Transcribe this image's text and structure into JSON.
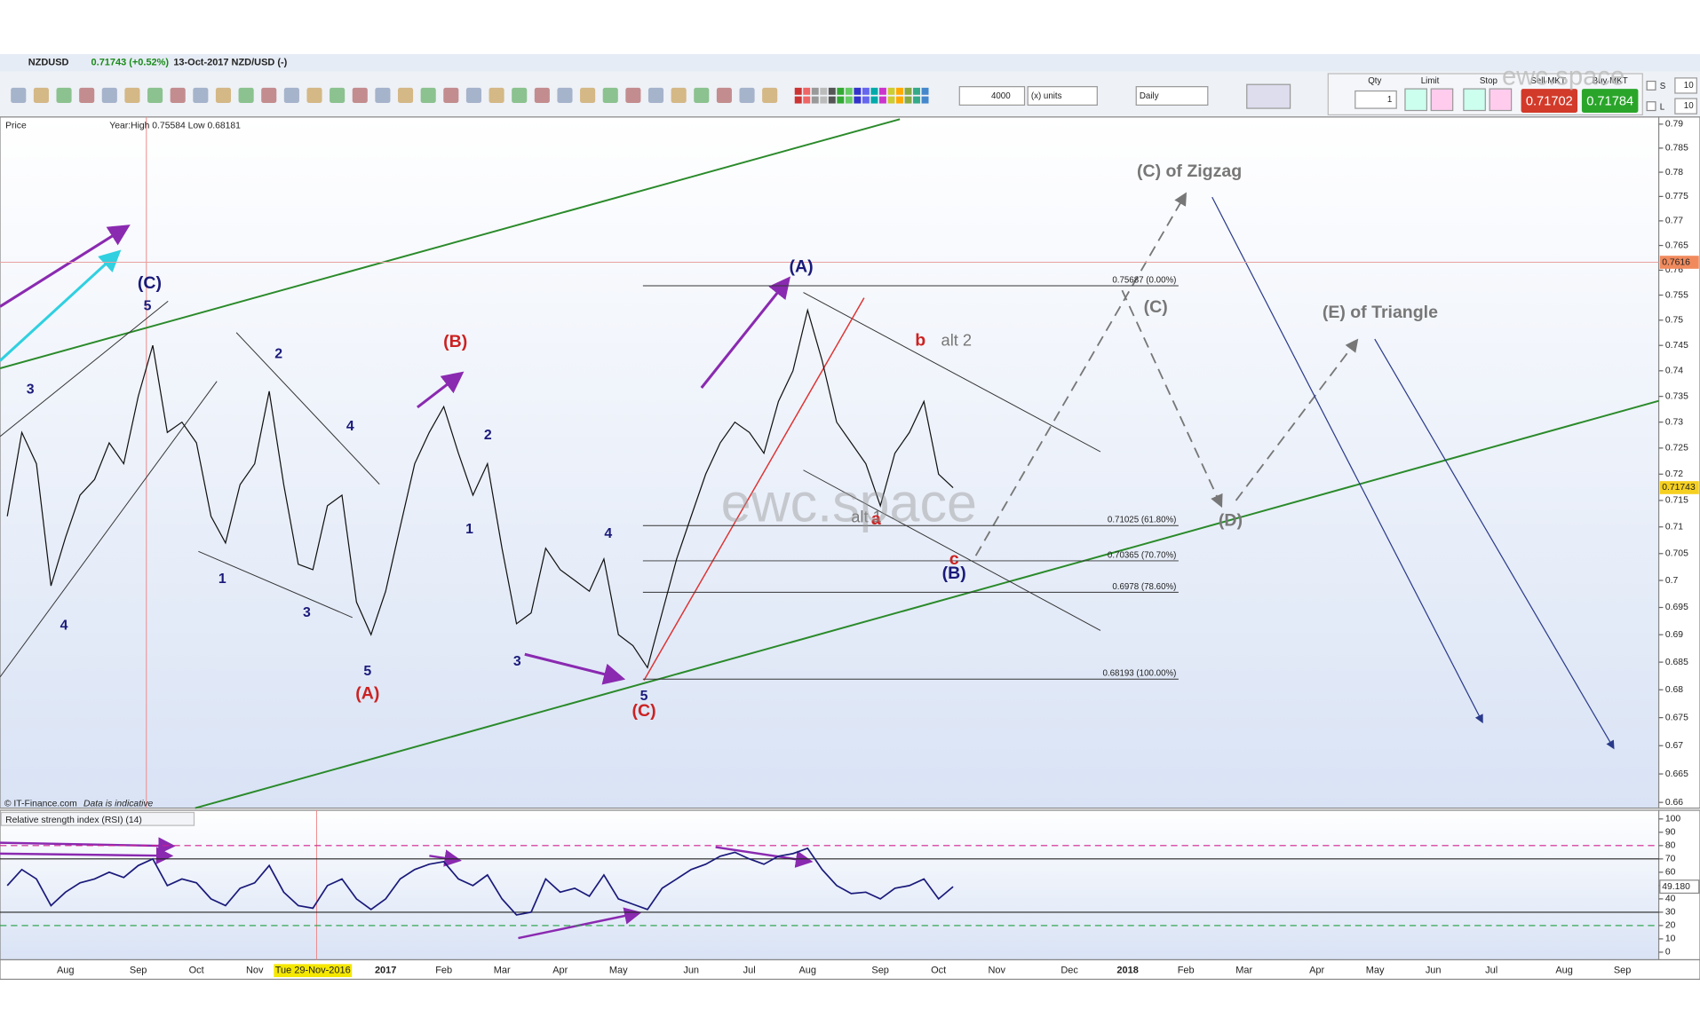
{
  "header": {
    "symbol": "NZDUSD",
    "change": "0.71743 (+0.52%)",
    "date": "13-Oct-2017 NZD/USD (-)"
  },
  "toolbar": {
    "units": "4000",
    "units_type": "(x) units",
    "period": "Daily",
    "qty_label": "Qty",
    "qty": "1",
    "limit_label": "Limit",
    "stop_label": "Stop",
    "sell_label": "Sell MKT",
    "buy_label": "Buy MKT",
    "sell_price": "0.71702",
    "buy_price": "0.71784",
    "s_label": "S",
    "s_value": "10",
    "l_label": "L",
    "l_value": "10",
    "watermark": "ewc.space"
  },
  "chart_data": [
    {
      "type": "line",
      "panel_label": "Price",
      "info": "Year:High 0.75584 Low 0.68181",
      "log": true,
      "color": "#111111",
      "ylim": [
        0.659,
        0.7915
      ],
      "yticks": [
        0.66,
        0.665,
        0.67,
        0.675,
        0.68,
        0.685,
        0.69,
        0.695,
        0.7,
        0.705,
        0.71,
        0.715,
        0.72,
        0.725,
        0.73,
        0.735,
        0.74,
        0.745,
        0.75,
        0.755,
        0.76,
        0.765,
        0.77,
        0.775,
        0.78,
        0.785,
        0.79
      ],
      "categories": [
        null,
        null,
        null,
        null,
        "Aug",
        null,
        null,
        null,
        null,
        "Sep",
        null,
        null,
        null,
        "Oct",
        null,
        null,
        null,
        "Nov",
        null,
        null,
        null,
        "Tue 29-Nov-2016",
        null,
        null,
        null,
        null,
        "2017",
        null,
        null,
        null,
        "Feb",
        null,
        null,
        null,
        "Mar",
        null,
        null,
        null,
        "Apr",
        null,
        null,
        null,
        "May",
        null,
        null,
        null,
        null,
        "Jun",
        null,
        null,
        null,
        "Jul",
        null,
        null,
        null,
        "Aug",
        null,
        null,
        null,
        null,
        "Sep",
        null,
        null,
        null,
        "Oct",
        null,
        null,
        null,
        "Nov",
        null,
        null,
        null,
        null,
        "Dec",
        null,
        null,
        null,
        "2018",
        null,
        null,
        null,
        "Feb",
        null,
        null,
        null,
        "Mar",
        null,
        null,
        null,
        null,
        "Apr",
        null,
        null,
        null,
        "May",
        null,
        null,
        null,
        "Jun",
        null,
        null,
        null,
        "Jul",
        null,
        null,
        null,
        null,
        "Aug",
        null,
        null,
        null,
        "Sep",
        null,
        null
      ],
      "values": [
        0.712,
        0.728,
        0.722,
        0.699,
        0.708,
        0.716,
        0.719,
        0.726,
        0.722,
        0.735,
        0.745,
        0.728,
        0.73,
        0.726,
        0.712,
        0.707,
        0.718,
        0.722,
        0.736,
        0.718,
        0.703,
        0.702,
        0.714,
        0.716,
        0.696,
        0.69,
        0.698,
        0.71,
        0.722,
        0.728,
        0.733,
        0.724,
        0.716,
        0.722,
        0.706,
        0.692,
        0.694,
        0.706,
        0.702,
        0.7,
        0.698,
        0.704,
        0.69,
        0.688,
        0.684,
        0.694,
        0.704,
        0.712,
        0.72,
        0.726,
        0.73,
        0.728,
        0.724,
        0.734,
        0.74,
        0.752,
        0.742,
        0.73,
        0.726,
        0.722,
        0.714,
        0.724,
        0.728,
        0.734,
        0.72,
        0.71743,
        null,
        null,
        null,
        null,
        null,
        null,
        null,
        null,
        null,
        null,
        null,
        null,
        null,
        null,
        null,
        null,
        null,
        null,
        null,
        null,
        null,
        null,
        null,
        null,
        null,
        null,
        null,
        null,
        null,
        null,
        null,
        null,
        null,
        null,
        null,
        null,
        null,
        null,
        null,
        null,
        null,
        null,
        null,
        null,
        null,
        null,
        null,
        null
      ],
      "price_markers": [
        0.7616,
        0.71743
      ],
      "price_marker_colors": [
        "#f08a5d",
        "#f5d020"
      ],
      "fib_levels": [
        {
          "value": 0.75687,
          "label": "0.75687 (0.00%)"
        },
        {
          "value": 0.71025,
          "label": "0.71025 (61.80%)"
        },
        {
          "value": 0.70365,
          "label": "0.70365 (70.70%)"
        },
        {
          "value": 0.6978,
          "label": "0.6978 (78.60%)"
        },
        {
          "value": 0.68193,
          "label": "0.68193 (100.00%)"
        }
      ],
      "annotations": [
        {
          "text": "(C)",
          "color": "#1a1a7a"
        },
        {
          "text": "5",
          "color": "#1a1a7a"
        },
        {
          "text": "3",
          "color": "#1a1a7a"
        },
        {
          "text": "4",
          "color": "#1a1a7a"
        },
        {
          "text": "2",
          "color": "#1a1a7a"
        },
        {
          "text": "4",
          "color": "#1a1a7a"
        },
        {
          "text": "1",
          "color": "#1a1a7a"
        },
        {
          "text": "3",
          "color": "#1a1a7a"
        },
        {
          "text": "5",
          "color": "#1a1a7a"
        },
        {
          "text": "(A)",
          "color": "#cc2222"
        },
        {
          "text": "(B)",
          "color": "#cc2222"
        },
        {
          "text": "2",
          "color": "#1a1a7a"
        },
        {
          "text": "1",
          "color": "#1a1a7a"
        },
        {
          "text": "4",
          "color": "#1a1a7a"
        },
        {
          "text": "3",
          "color": "#1a1a7a"
        },
        {
          "text": "5",
          "color": "#1a1a7a"
        },
        {
          "text": "(C)",
          "color": "#cc2222"
        },
        {
          "text": "(A)",
          "color": "#1a1a7a"
        },
        {
          "text": "b",
          "color": "#cc2222"
        },
        {
          "text": "alt 2",
          "color": "#777777"
        },
        {
          "text": "alt 1",
          "color": "#777777"
        },
        {
          "text": "a",
          "color": "#cc2222"
        },
        {
          "text": "c",
          "color": "#cc2222"
        },
        {
          "text": "(B)",
          "color": "#1a1a7a"
        },
        {
          "text": "(C) of Zigzag",
          "color": "#777777"
        },
        {
          "text": "(C)",
          "color": "#777777"
        },
        {
          "text": "(E) of Triangle",
          "color": "#777777"
        },
        {
          "text": "(D)",
          "color": "#777777"
        }
      ],
      "watermark": "ewc.space",
      "source": "© IT-Finance.com",
      "source_note": "Data is indicative"
    },
    {
      "type": "line",
      "panel_label": "Relative strength index (RSI) (14)",
      "color": "#1a1a7a",
      "ylim": [
        0,
        100
      ],
      "yticks": [
        0,
        10,
        20,
        30,
        40,
        50,
        60,
        70,
        80,
        90,
        100
      ],
      "levels": [
        80,
        70,
        30,
        20
      ],
      "level_colors": [
        "#d02090",
        "#222222",
        "#222222",
        "#20a040"
      ],
      "current_label": {
        "value": 49.18,
        "label": "49.180"
      },
      "values": [
        50,
        62,
        55,
        35,
        45,
        52,
        55,
        60,
        56,
        65,
        70,
        50,
        55,
        52,
        40,
        35,
        48,
        52,
        65,
        45,
        35,
        33,
        50,
        55,
        40,
        32,
        40,
        55,
        62,
        66,
        68,
        55,
        50,
        58,
        40,
        28,
        30,
        55,
        45,
        48,
        42,
        58,
        40,
        36,
        32,
        48,
        55,
        62,
        66,
        72,
        75,
        70,
        66,
        72,
        74,
        78,
        62,
        50,
        44,
        45,
        40,
        48,
        50,
        55,
        40,
        49.18,
        null,
        null,
        null,
        null,
        null,
        null,
        null,
        null,
        null,
        null,
        null,
        null,
        null,
        null,
        null,
        null,
        null,
        null,
        null,
        null,
        null,
        null,
        null,
        null,
        null,
        null,
        null,
        null,
        null,
        null,
        null,
        null,
        null,
        null,
        null,
        null,
        null,
        null,
        null,
        null,
        null,
        null,
        null,
        null,
        null,
        null,
        null,
        null
      ]
    }
  ]
}
